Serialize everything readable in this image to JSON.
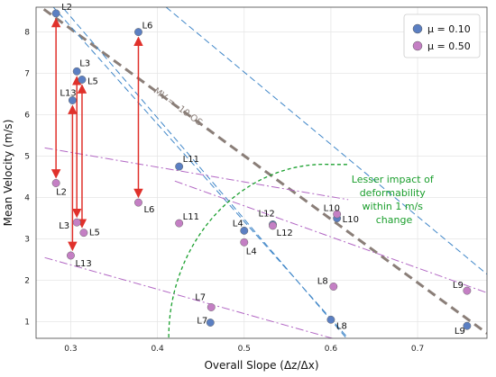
{
  "chart_data": {
    "type": "scatter",
    "title": "",
    "xlabel": "Overall Slope (Δz/Δx)",
    "ylabel": "Mean Velocity (m/s)",
    "xlim": [
      0.26,
      0.78
    ],
    "ylim": [
      0.6,
      8.6
    ],
    "xticks": [
      0.3,
      0.4,
      0.5,
      0.6,
      0.7
    ],
    "xtick_labels": [
      "0.3",
      "0.4",
      "0.5",
      "0.6",
      "0.7"
    ],
    "yticks": [
      1,
      2,
      3,
      4,
      5,
      6,
      7,
      8
    ],
    "ytick_labels": [
      "1",
      "2",
      "3",
      "4",
      "5",
      "6",
      "7",
      "8"
    ],
    "grid": true,
    "legend_position": "top-right",
    "series": [
      {
        "name": "μ = 0.10",
        "color": "#5b7fc2",
        "points": [
          {
            "label": "L2",
            "x": 0.283,
            "y": 8.45
          },
          {
            "label": "L6",
            "x": 0.378,
            "y": 8.0
          },
          {
            "label": "L3",
            "x": 0.307,
            "y": 7.05
          },
          {
            "label": "L5",
            "x": 0.313,
            "y": 6.85
          },
          {
            "label": "L13",
            "x": 0.302,
            "y": 6.35
          },
          {
            "label": "L11",
            "x": 0.425,
            "y": 4.75
          },
          {
            "label": "L4",
            "x": 0.5,
            "y": 3.2
          },
          {
            "label": "L12",
            "x": 0.533,
            "y": 3.35
          },
          {
            "label": "L10",
            "x": 0.607,
            "y": 3.5
          },
          {
            "label": "L7",
            "x": 0.461,
            "y": 0.98
          },
          {
            "label": "L8",
            "x": 0.6,
            "y": 1.05
          },
          {
            "label": "L9",
            "x": 0.757,
            "y": 0.9
          }
        ]
      },
      {
        "name": "μ = 0.50",
        "color": "#c47fc4",
        "points": [
          {
            "label": "L2",
            "x": 0.283,
            "y": 4.35
          },
          {
            "label": "L6",
            "x": 0.378,
            "y": 3.88
          },
          {
            "label": "L3",
            "x": 0.307,
            "y": 3.4
          },
          {
            "label": "L5",
            "x": 0.315,
            "y": 3.15
          },
          {
            "label": "L13",
            "x": 0.3,
            "y": 2.6
          },
          {
            "label": "L11",
            "x": 0.425,
            "y": 3.38
          },
          {
            "label": "L4",
            "x": 0.5,
            "y": 2.92
          },
          {
            "label": "L12",
            "x": 0.533,
            "y": 3.32
          },
          {
            "label": "L10",
            "x": 0.607,
            "y": 3.6
          },
          {
            "label": "L7",
            "x": 0.462,
            "y": 1.35
          },
          {
            "label": "L8",
            "x": 0.603,
            "y": 1.85
          },
          {
            "label": "L9",
            "x": 0.757,
            "y": 1.75
          }
        ]
      }
    ],
    "arrows": [
      {
        "label": "L2",
        "x": 0.283,
        "from": 8.45,
        "to": 4.35
      },
      {
        "label": "L6",
        "x": 0.378,
        "from": 8.0,
        "to": 3.88
      },
      {
        "label": "L3",
        "x": 0.307,
        "from": 7.05,
        "to": 3.4
      },
      {
        "label": "L5",
        "x": 0.313,
        "from": 6.85,
        "to": 3.15
      },
      {
        "label": "L13",
        "x": 0.302,
        "from": 6.35,
        "to": 2.6
      }
    ],
    "annotations": {
      "mv_line_label": "MV = -10 OS",
      "region_label": [
        "Lesser impact of",
        "deformability",
        "within 1 m/s",
        "change"
      ]
    }
  }
}
